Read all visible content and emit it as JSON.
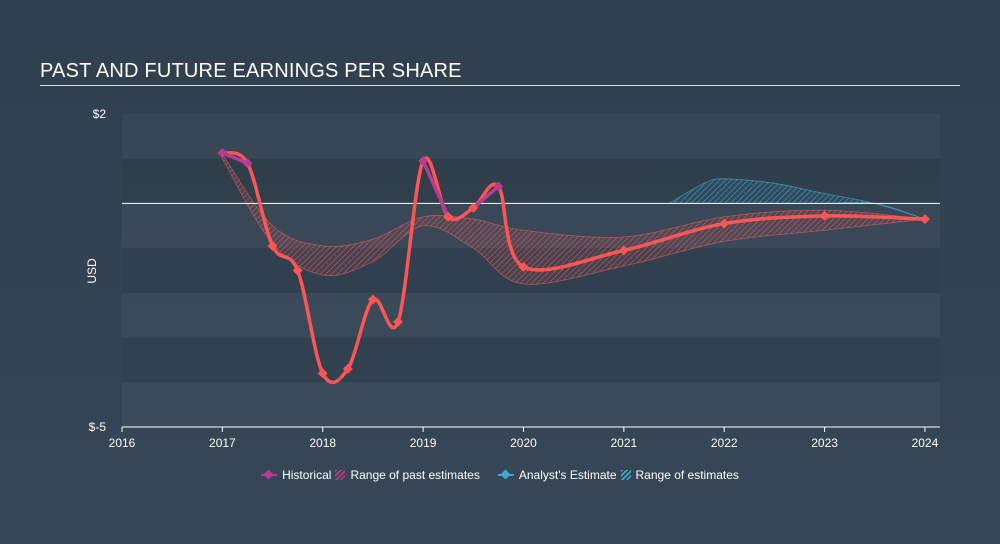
{
  "chart_data": {
    "type": "line",
    "title": "PAST AND FUTURE EARNINGS PER SHARE",
    "xlabel": "",
    "ylabel": "USD",
    "xlim": [
      2016,
      2024.15
    ],
    "ylim": [
      -5,
      2
    ],
    "x_ticks": [
      "2016",
      "2017",
      "2018",
      "2019",
      "2020",
      "2021",
      "2022",
      "2023",
      "2024"
    ],
    "y_ticks": [
      {
        "value": 2,
        "label": "$2"
      },
      {
        "value": -5,
        "label": "$-5"
      }
    ],
    "zero_line": 0,
    "series": [
      {
        "name": "Historical",
        "color": "#ff5555",
        "points": [
          [
            2017.0,
            1.13
          ],
          [
            2017.25,
            0.9
          ],
          [
            2017.5,
            -0.95
          ],
          [
            2017.75,
            -1.5
          ],
          [
            2018.0,
            -3.8
          ],
          [
            2018.25,
            -3.7
          ],
          [
            2018.5,
            -2.15
          ],
          [
            2018.75,
            -2.65
          ],
          [
            2019.0,
            0.95
          ],
          [
            2019.25,
            -0.3
          ],
          [
            2019.5,
            -0.1
          ],
          [
            2019.75,
            0.38
          ],
          [
            2020.0,
            -1.42
          ],
          [
            2021.0,
            -1.05
          ],
          [
            2022.0,
            -0.45
          ],
          [
            2023.0,
            -0.28
          ],
          [
            2024.0,
            -0.35
          ]
        ]
      }
    ],
    "historical_highlight_color": "#b83c8f",
    "past_estimates_band": {
      "name": "Range of past estimates",
      "color": "#e05a5a",
      "x": [
        2017.0,
        2017.5,
        2018.0,
        2018.5,
        2019.0,
        2019.5,
        2020.0,
        2021.0,
        2022.0,
        2023.0,
        2024.0
      ],
      "upper": [
        1.1,
        -0.5,
        -0.95,
        -0.8,
        -0.3,
        -0.35,
        -0.6,
        -0.75,
        -0.3,
        -0.15,
        -0.35
      ],
      "lower": [
        1.0,
        -0.9,
        -1.6,
        -1.3,
        -0.5,
        -1.0,
        -1.8,
        -1.4,
        -0.85,
        -0.6,
        -0.35
      ]
    },
    "analyst_estimate": {
      "name": "Analyst's Estimate",
      "color": "#3fa9d5"
    },
    "future_estimates_band": {
      "name": "Range of estimates",
      "color": "#3fa9d5",
      "x": [
        2021.45,
        2021.8,
        2022.0,
        2022.5,
        2023.0,
        2023.5,
        2024.0
      ],
      "upper": [
        0.0,
        0.45,
        0.55,
        0.45,
        0.22,
        0.0,
        -0.35
      ],
      "lower": [
        0.0,
        0.0,
        0.0,
        0.0,
        0.0,
        0.0,
        -0.35
      ]
    },
    "legend_position": "bottom-center"
  },
  "legend": {
    "historical": "Historical",
    "past_range": "Range of past estimates",
    "analyst": "Analyst's Estimate",
    "future_range": "Range of estimates"
  }
}
